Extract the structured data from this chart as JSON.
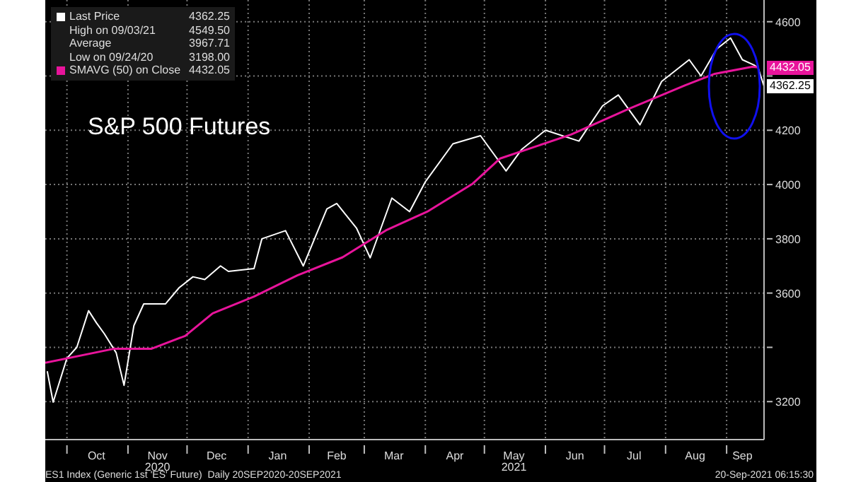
{
  "chart_data": {
    "type": "line",
    "title": "S&P 500 Futures",
    "series": [
      {
        "name": "Last Price",
        "color": "#ffffff",
        "x": [
          "2020-09-21",
          "2020-09-24",
          "2020-10-01",
          "2020-10-06",
          "2020-10-12",
          "2020-10-16",
          "2020-10-20",
          "2020-10-26",
          "2020-10-30",
          "2020-11-04",
          "2020-11-09",
          "2020-11-13",
          "2020-11-20",
          "2020-11-27",
          "2020-12-04",
          "2020-12-10",
          "2020-12-18",
          "2020-12-22",
          "2021-01-04",
          "2021-01-08",
          "2021-01-20",
          "2021-01-29",
          "2021-02-10",
          "2021-02-15",
          "2021-02-25",
          "2021-03-04",
          "2021-03-15",
          "2021-03-24",
          "2021-04-01",
          "2021-04-15",
          "2021-04-29",
          "2021-05-12",
          "2021-05-20",
          "2021-06-01",
          "2021-06-18",
          "2021-06-30",
          "2021-07-08",
          "2021-07-19",
          "2021-07-30",
          "2021-08-13",
          "2021-08-19",
          "2021-08-27",
          "2021-09-03",
          "2021-09-09",
          "2021-09-15",
          "2021-09-17",
          "2021-09-20"
        ],
        "values": [
          3312,
          3198,
          3360,
          3400,
          3535,
          3490,
          3450,
          3380,
          3260,
          3480,
          3560,
          3560,
          3560,
          3620,
          3660,
          3650,
          3700,
          3680,
          3690,
          3800,
          3830,
          3700,
          3910,
          3930,
          3840,
          3730,
          3950,
          3900,
          4010,
          4150,
          4180,
          4050,
          4130,
          4200,
          4160,
          4290,
          4330,
          4220,
          4380,
          4460,
          4400,
          4500,
          4540,
          4460,
          4440,
          4430,
          4362.25
        ]
      },
      {
        "name": "SMAVG (50) on Close",
        "color": "#e8149b",
        "x": [
          "2020-09-20",
          "2020-10-25",
          "2020-11-13",
          "2020-11-30",
          "2020-12-14",
          "2021-01-04",
          "2021-01-26",
          "2021-02-18",
          "2021-03-12",
          "2021-04-02",
          "2021-04-25",
          "2021-05-09",
          "2021-06-14",
          "2021-07-13",
          "2021-08-11",
          "2021-08-26",
          "2021-09-14",
          "2021-09-17"
        ],
        "values": [
          3343,
          3395,
          3395,
          3442,
          3525,
          3587,
          3665,
          3732,
          3831,
          3900,
          4003,
          4096,
          4184,
          4278,
          4366,
          4408,
          4434,
          4432.05
        ]
      }
    ],
    "xlim": [
      "2020-09-20",
      "2021-09-20"
    ],
    "xticks": [
      {
        "value": "2020-10-01",
        "label": null
      },
      {
        "value": "2020-10-16",
        "label": "Oct"
      },
      {
        "value": "2020-11-01",
        "label": null
      },
      {
        "value": "2020-11-16",
        "label": "Nov\n2020"
      },
      {
        "value": "2020-12-01",
        "label": null
      },
      {
        "value": "2020-12-16",
        "label": "Dec"
      },
      {
        "value": "2021-01-01",
        "label": null
      },
      {
        "value": "2021-01-16",
        "label": "Jan"
      },
      {
        "value": "2021-02-01",
        "label": null
      },
      {
        "value": "2021-02-15",
        "label": "Feb"
      },
      {
        "value": "2021-03-01",
        "label": null
      },
      {
        "value": "2021-03-16",
        "label": "Mar"
      },
      {
        "value": "2021-04-01",
        "label": null
      },
      {
        "value": "2021-04-16",
        "label": "Apr"
      },
      {
        "value": "2021-05-01",
        "label": null
      },
      {
        "value": "2021-05-16",
        "label": "May\n2021"
      },
      {
        "value": "2021-06-01",
        "label": null
      },
      {
        "value": "2021-06-16",
        "label": "Jun"
      },
      {
        "value": "2021-07-01",
        "label": null
      },
      {
        "value": "2021-07-16",
        "label": "Jul"
      },
      {
        "value": "2021-08-01",
        "label": null
      },
      {
        "value": "2021-08-16",
        "label": "Aug"
      },
      {
        "value": "2021-09-01",
        "label": null
      },
      {
        "value": "2021-09-09",
        "label": "Sep"
      }
    ],
    "ylim": [
      3060,
      4680
    ],
    "yticks": [
      3200,
      {
        "value": 3400,
        "label": null
      },
      3600,
      3800,
      4000,
      4200,
      {
        "value": 4400,
        "label": null
      },
      4600
    ],
    "grid": true,
    "legend": "top left",
    "marker": "none",
    "annotations": [
      {
        "text": "4362.25",
        "x": "2021-09-20",
        "y": 4362.25
      },
      "High on 09/03/21 4549.50",
      "Average 3967.71",
      "Low on 09/24/20 3198.00",
      {
        "text": "4432.05",
        "x": "2021-09-17",
        "y": 4432.05
      },
      "ES1 Index (Generic 1st 'ES' Future)  Daily 20SEP2020-20SEP2021",
      "20-Sep-2021 06:15:30"
    ]
  }
}
